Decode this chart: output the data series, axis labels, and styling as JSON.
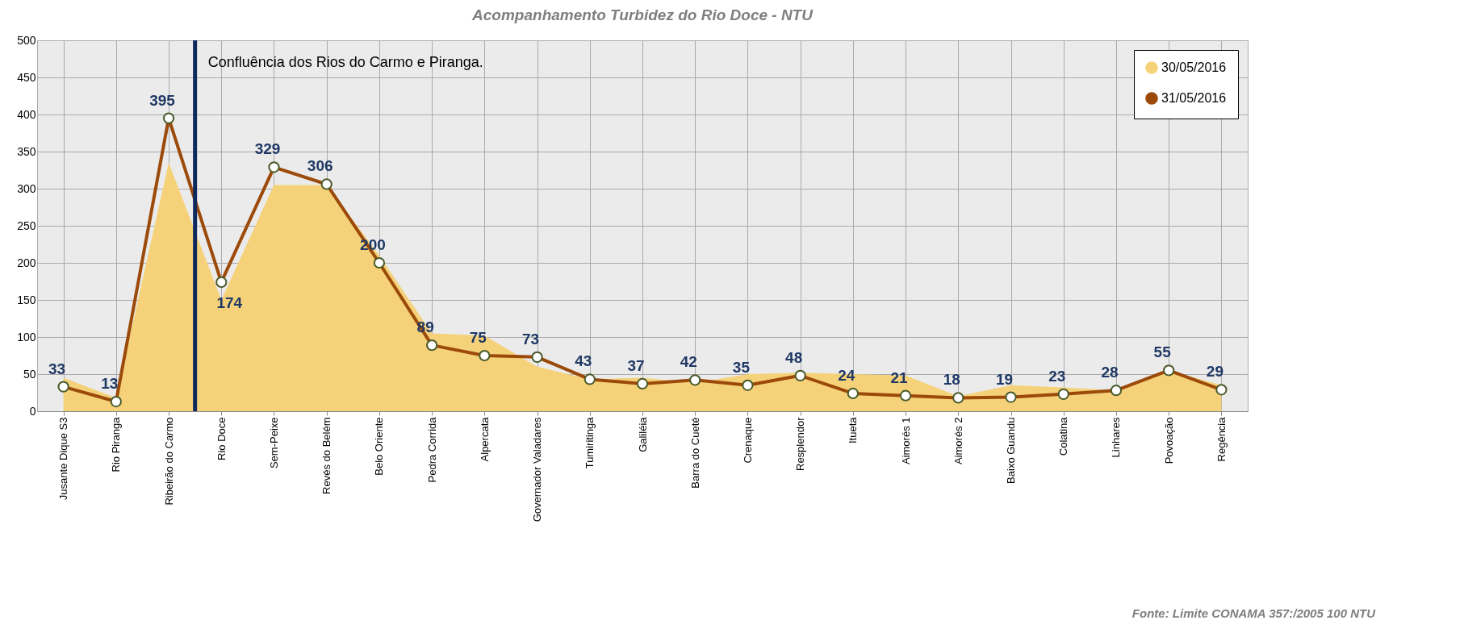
{
  "chart_data": {
    "type": "area",
    "title": "Acompanhamento Turbidez do Rio Doce - NTU",
    "categories": [
      "Jusante Dique S3",
      "Rio Piranga",
      "Ribeirão do Carmo",
      "Rio Doce",
      "Sem-Peixe",
      "Revés do Belém",
      "Belo Oriente",
      "Pedra Corrida",
      "Alpercata",
      "Governador Valadares",
      "Tumiritinga",
      "Galiléia",
      "Barra do Cueté",
      "Crenaque",
      "Resplendor",
      "Itueta",
      "Aimorés 1",
      "Aimorés 2",
      "Baixo Guandu",
      "Colatina",
      "Linhares",
      "Povoação",
      "Regência"
    ],
    "series": [
      {
        "name": "30/05/2016",
        "color": "#f5d27a",
        "values": [
          45,
          18,
          335,
          150,
          305,
          305,
          210,
          105,
          102,
          60,
          43,
          45,
          38,
          50,
          52,
          50,
          48,
          20,
          35,
          32,
          28,
          55,
          35
        ]
      },
      {
        "name": "31/05/2016",
        "type": "line",
        "color": "#9c4a0a",
        "marker": "circle",
        "values": [
          33,
          13,
          395,
          174,
          329,
          306,
          200,
          89,
          75,
          73,
          43,
          37,
          42,
          35,
          48,
          24,
          21,
          18,
          19,
          23,
          28,
          55,
          29
        ],
        "value_labels": [
          "33",
          "13",
          "395",
          "174",
          "329",
          "306",
          "200",
          "89",
          "75",
          "73",
          "43",
          "37",
          "42",
          "35",
          "48",
          "24",
          "21",
          "18",
          "19",
          "23",
          "28",
          "55",
          "29"
        ]
      }
    ],
    "ylim": [
      0,
      500
    ],
    "yticks": [
      0,
      50,
      100,
      150,
      200,
      250,
      300,
      350,
      400,
      450,
      500
    ],
    "grid": true,
    "legend": "top right",
    "ref_lines": [
      {
        "axis": "x",
        "value": "Rio Doce",
        "label": "Confluência dos Rios  do Carmo e Piranga.",
        "color": "#0e2a5c"
      }
    ],
    "annotations": [
      "Fonte: Limite CONAMA 357:/2005 100 NTU"
    ]
  }
}
